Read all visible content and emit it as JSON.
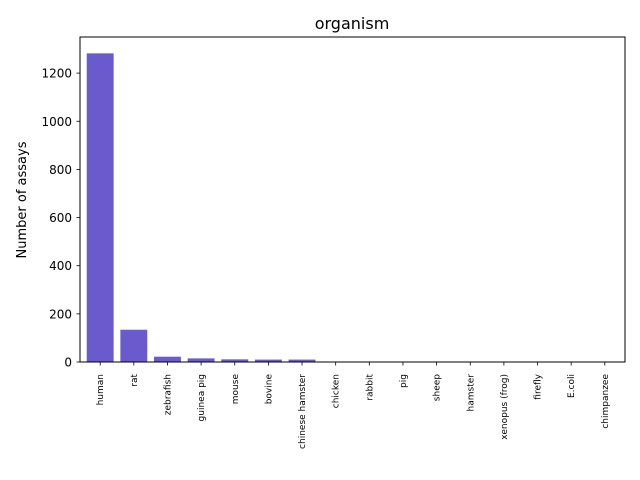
{
  "chart_data": {
    "type": "bar",
    "title": "organism",
    "xlabel": "",
    "ylabel": "Number of assays",
    "ylim": [
      0,
      1350
    ],
    "yticks": [
      0,
      200,
      400,
      600,
      800,
      1000,
      1200
    ],
    "grid": false,
    "bar_color": "#6a5acd",
    "categories": [
      "human",
      "rat",
      "zebrafish",
      "guinea pig",
      "mouse",
      "bovine",
      "chinese hamster",
      "chicken",
      "rabbit",
      "pig",
      "sheep",
      "hamster",
      "xenopus (frog)",
      "firefly",
      "E.coli",
      "chimpanzee"
    ],
    "values": [
      1282,
      134,
      22,
      15,
      11,
      10,
      10,
      2,
      2,
      1,
      1,
      1,
      1,
      1,
      1,
      1
    ]
  }
}
